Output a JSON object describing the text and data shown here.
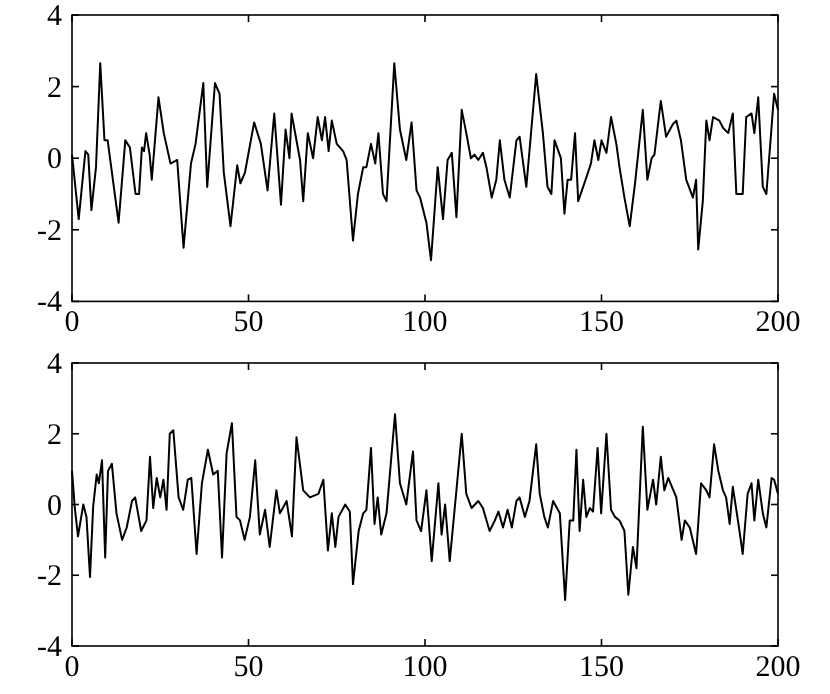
{
  "chart_data": [
    {
      "type": "line",
      "color": "#000000",
      "xlim": [
        0,
        200
      ],
      "xticks": [
        0,
        50,
        100,
        150,
        200
      ],
      "ylim": [
        -4,
        4
      ],
      "yticks": [
        -4,
        -2,
        0,
        2,
        4
      ],
      "x": [
        0,
        1.9,
        3.8,
        4.6,
        5.5,
        6.8,
        8.0,
        9.2,
        10.1,
        13.2,
        15.1,
        16.4,
        18,
        19,
        19.8,
        20.4,
        21,
        22,
        22.6,
        24.5,
        26,
        27.9,
        29.8,
        31.6,
        33.7,
        35,
        37.2,
        38.3,
        40.5,
        41.8,
        43,
        44.9,
        46.8,
        47.7,
        49,
        51.6,
        53.5,
        55.4,
        57.3,
        59.2,
        60.5,
        61.6,
        62.2,
        64.6,
        65.5,
        66.8,
        68.3,
        69.6,
        70.8,
        71.7,
        72.7,
        73.6,
        75,
        76.8,
        77.8,
        79.6,
        81,
        82.5,
        83.4,
        84.7,
        85.9,
        86.8,
        88.1,
        89.1,
        91.3,
        92.9,
        94.7,
        96.2,
        97.6,
        98.6,
        100.4,
        101.7,
        103.6,
        105.1,
        106.4,
        107.6,
        108.9,
        110.4,
        111.7,
        113,
        114,
        115.1,
        116.4,
        117.4,
        118.9,
        120.2,
        121.2,
        122.5,
        124,
        125.9,
        126.8,
        128.7,
        131.5,
        133.4,
        134.7,
        135.8,
        136.7,
        138.5,
        139.5,
        140.4,
        141.4,
        142.5,
        143.4,
        144.8,
        146,
        147,
        148,
        149.1,
        150,
        151.4,
        152.7,
        154.2,
        155.1,
        156.5,
        158,
        159.5,
        161.7,
        163,
        164.2,
        165,
        166.8,
        168.3,
        170.2,
        171.2,
        172.5,
        174,
        175.9,
        176.8,
        177.4,
        178.7,
        179.7,
        180.6,
        181.6,
        183.4,
        184.4,
        185.9,
        187.2,
        188.2,
        190,
        191,
        192.5,
        193.3,
        194.4,
        195.7,
        196.7,
        198.2,
        198.9,
        200
      ],
      "values": [
        0.1,
        -1.7,
        0.2,
        0.1,
        -1.45,
        -0.25,
        2.65,
        0.5,
        0.5,
        -1.8,
        0.5,
        0.3,
        -1,
        -1,
        0.3,
        0.2,
        0.7,
        0.1,
        -0.6,
        1.7,
        0.7,
        -0.15,
        -0.05,
        -2.5,
        -0.15,
        0.4,
        2.1,
        -0.8,
        2.1,
        1.8,
        -0.4,
        -1.9,
        -0.2,
        -0.7,
        -0.4,
        1,
        0.4,
        -0.9,
        1.25,
        -1.3,
        0.8,
        0,
        1.25,
        -0.05,
        -1.2,
        0.7,
        0,
        1.15,
        0.5,
        1.15,
        0.2,
        1.05,
        0.4,
        0.2,
        -0.05,
        -2.3,
        -1,
        -0.25,
        -0.25,
        0.4,
        -0.15,
        0.7,
        -1,
        -1.2,
        2.65,
        0.8,
        -0.05,
        1,
        -0.9,
        -1.1,
        -1.8,
        -2.85,
        -0.25,
        -1.7,
        -0.05,
        0.15,
        -1.65,
        1.35,
        0.7,
        0,
        0.1,
        -0.05,
        0.15,
        -0.25,
        -1.1,
        -0.6,
        0.5,
        -0.6,
        -1.1,
        0.5,
        0.6,
        -0.8,
        2.35,
        0.7,
        -0.8,
        -1,
        0.5,
        0,
        -1.55,
        -0.6,
        -0.6,
        0.7,
        -1.2,
        -0.8,
        -0.45,
        -0.15,
        0.5,
        -0.05,
        0.5,
        0.15,
        1.15,
        0.4,
        -0.25,
        -1.1,
        -1.9,
        -0.7,
        1.35,
        -0.6,
        0,
        0.1,
        1.6,
        0.6,
        0.95,
        1.05,
        0.5,
        -0.6,
        -1.1,
        -0.6,
        -2.55,
        -1.2,
        1.05,
        0.5,
        1.15,
        1.05,
        0.85,
        0.7,
        1.25,
        -1,
        -1,
        1.15,
        1.25,
        0.7,
        1.7,
        -0.8,
        -1,
        0.9,
        1.8,
        1.35
      ]
    },
    {
      "type": "line",
      "color": "#000000",
      "xlim": [
        0,
        200
      ],
      "xticks": [
        0,
        50,
        100,
        150,
        200
      ],
      "ylim": [
        -4,
        4
      ],
      "yticks": [
        -4,
        -2,
        0,
        2,
        4
      ],
      "x": [
        0,
        0.8,
        1.7,
        3.2,
        4.1,
        5.1,
        6,
        7,
        7.6,
        8.5,
        9.4,
        10.2,
        11.3,
        12.6,
        14.2,
        15.5,
        17,
        17.9,
        19.6,
        21.1,
        22.1,
        23,
        24,
        25,
        25.9,
        26.8,
        27.7,
        28.7,
        30.2,
        31.5,
        32.8,
        33.8,
        35.3,
        36.8,
        38.5,
        40,
        41.3,
        42.5,
        43.8,
        45.3,
        46.6,
        47.6,
        48.9,
        50.4,
        51.9,
        53.2,
        54.7,
        56,
        57.9,
        58.9,
        60.8,
        62.3,
        63.6,
        65.5,
        67.4,
        69.8,
        71.2,
        72.5,
        73.6,
        74.6,
        75.5,
        77.4,
        78.7,
        79.6,
        81.2,
        82.5,
        83.4,
        84.7,
        85.7,
        86.6,
        87.6,
        89.1,
        91.5,
        92.9,
        94.7,
        96.6,
        97.6,
        98.9,
        100.4,
        101.9,
        103.8,
        104.7,
        105.7,
        107,
        108.9,
        110.4,
        111.7,
        113.2,
        115.1,
        116.4,
        118.3,
        119.8,
        120.8,
        122.1,
        123.4,
        124.6,
        125.9,
        126.8,
        128.3,
        129.6,
        131.5,
        132.5,
        133.8,
        134.8,
        136.3,
        138.2,
        139.7,
        141,
        142,
        142.9,
        143.8,
        144.8,
        145.7,
        146.7,
        147.6,
        148.9,
        149.9,
        151.4,
        152.7,
        153.8,
        155.1,
        156.5,
        157.6,
        158.9,
        159.9,
        161.7,
        163,
        164.6,
        165.5,
        166.8,
        167.8,
        168.9,
        171.2,
        172.7,
        173.6,
        175,
        176.8,
        178.2,
        179.7,
        180.6,
        181.9,
        183.1,
        184.4,
        185.3,
        186.3,
        187.2,
        189.1,
        190,
        191.4,
        192.5,
        193.3,
        194.4,
        195.7,
        196.7,
        198.2,
        198.9,
        200
      ],
      "values": [
        0.95,
        -0.1,
        -0.9,
        0,
        -0.35,
        -2.05,
        -0.05,
        0.85,
        0.6,
        1.25,
        -1.5,
        0.95,
        1.15,
        -0.25,
        -1,
        -0.65,
        0.1,
        0.2,
        -0.75,
        -0.45,
        1.35,
        -0.1,
        0.75,
        0.2,
        0.7,
        -0.15,
        2,
        2.1,
        0.2,
        -0.15,
        0.7,
        0.75,
        -1.4,
        0.6,
        1.55,
        0.85,
        0.95,
        -1.5,
        1.45,
        2.3,
        -0.35,
        -0.45,
        -1,
        -0.35,
        1.25,
        -0.85,
        -0.15,
        -1.2,
        0.4,
        -0.25,
        0.1,
        -0.9,
        1.9,
        0.4,
        0.2,
        0.3,
        0.7,
        -1.3,
        -0.25,
        -1.2,
        -0.35,
        0,
        -0.2,
        -2.25,
        -0.75,
        -0.25,
        -0.15,
        1.6,
        -0.55,
        0.2,
        -0.85,
        -0.25,
        2.55,
        0.6,
        0,
        1.5,
        -0.45,
        -0.75,
        0.4,
        -1.6,
        0.6,
        -0.85,
        0,
        -1.6,
        0.4,
        2,
        0.3,
        -0.1,
        0.1,
        -0.1,
        -0.75,
        -0.45,
        -0.2,
        -0.65,
        -0.15,
        -0.65,
        0.1,
        0.2,
        -0.35,
        0.1,
        1.7,
        0.3,
        -0.35,
        -0.65,
        0.1,
        -0.25,
        -2.7,
        -0.45,
        -0.45,
        1.55,
        -0.75,
        0.7,
        -0.35,
        -0.1,
        -0.2,
        1.6,
        -0.25,
        2,
        -0.15,
        -0.35,
        -0.45,
        -0.75,
        -2.55,
        -1.2,
        -1.8,
        2.2,
        -0.15,
        0.7,
        0,
        1.35,
        0.4,
        0.75,
        0.2,
        -1,
        -0.45,
        -0.65,
        -1.4,
        0.6,
        0.4,
        0.2,
        1.7,
        0.95,
        0.4,
        0.2,
        -0.55,
        0.5,
        -0.75,
        -1.4,
        0.3,
        0.6,
        -0.45,
        0.7,
        -0.25,
        -0.65,
        0.75,
        0.7,
        0.3
      ]
    }
  ]
}
